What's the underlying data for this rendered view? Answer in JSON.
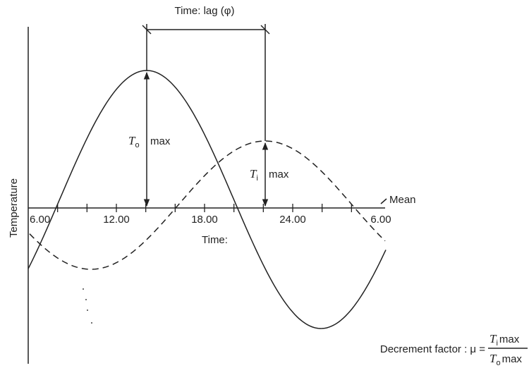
{
  "title": "Time: lag (φ)",
  "y_axis_label": "Temperature",
  "mean_label": "Mean",
  "time_label": "Time:",
  "time_ticks": [
    "6.00",
    "12.00",
    "18.00",
    "24.00",
    "6.00"
  ],
  "outside_amplitude": {
    "symbol": "T",
    "subscript": "o",
    "text": "max"
  },
  "inside_amplitude": {
    "symbol": "T",
    "subscript": "i",
    "text": "max"
  },
  "decrement_factor": {
    "text": "Decrement factor : μ =",
    "numerator": {
      "symbol": "T",
      "subscript": "i",
      "text": "max"
    },
    "denominator": {
      "symbol": "T",
      "subscript": "o",
      "text": "max"
    }
  }
}
